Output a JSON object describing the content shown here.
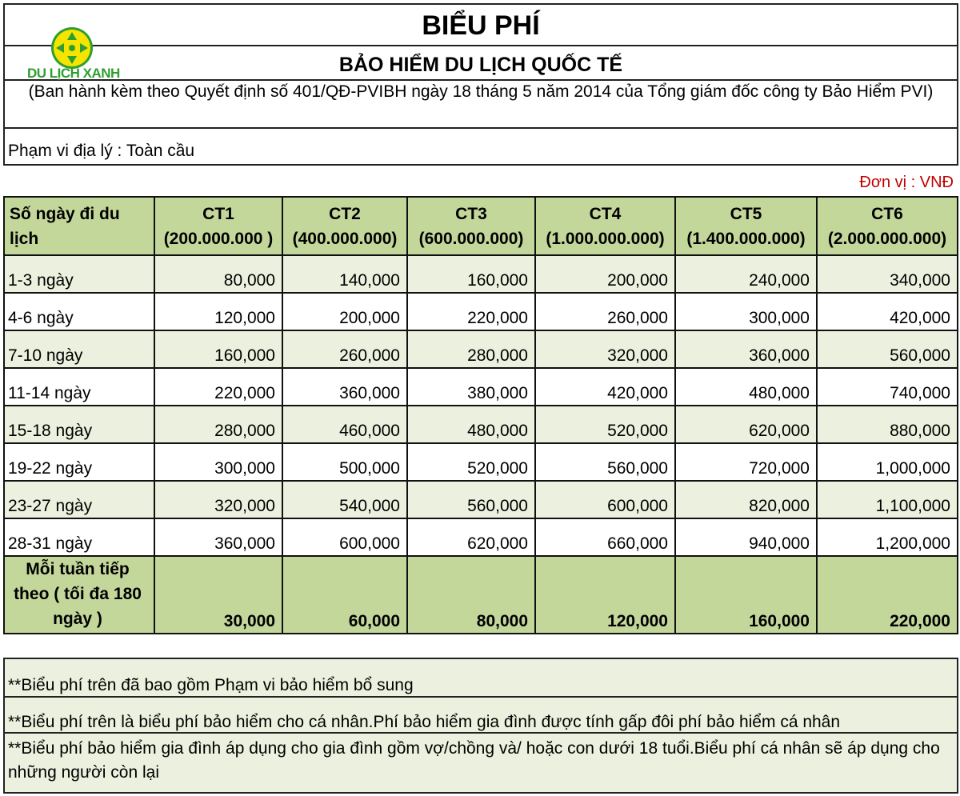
{
  "header": {
    "title": "BIỂU PHÍ",
    "subtitle": "BẢO HIỂM DU LỊCH QUỐC TẾ",
    "decision": "(Ban hành kèm theo Quyết định số 401/QĐ-PVIBH ngày 18 tháng 5 năm 2014 của Tổng giám đốc công ty Bảo Hiểm PVI)",
    "scope": "Phạm vi địa lý : Toàn cầu",
    "logo_text": "DU LỊCH XANH"
  },
  "unit": "Đơn vị :  VNĐ",
  "colors": {
    "header_green": "#c4d79b",
    "light_green": "#ebf1de",
    "unit_red": "#c00000",
    "logo_green": "#2e9e2e",
    "logo_yellow": "#f5e400"
  },
  "table": {
    "first_header": "Số ngày đi du lịch",
    "columns": [
      {
        "name": "CT1",
        "amount": "(200.000.000 )"
      },
      {
        "name": "CT2",
        "amount": "(400.000.000)"
      },
      {
        "name": "CT3",
        "amount": "(600.000.000)"
      },
      {
        "name": "CT4",
        "amount": "(1.000.000.000)"
      },
      {
        "name": "CT5",
        "amount": "(1.400.000.000)"
      },
      {
        "name": "CT6",
        "amount": "(2.000.000.000)"
      }
    ],
    "rows": [
      {
        "label": "1-3 ngày",
        "values": [
          "80,000",
          "140,000",
          "160,000",
          "200,000",
          "240,000",
          "340,000"
        ]
      },
      {
        "label": "4-6 ngày",
        "values": [
          "120,000",
          "200,000",
          "220,000",
          "260,000",
          "300,000",
          "420,000"
        ]
      },
      {
        "label": "7-10 ngày",
        "values": [
          "160,000",
          "260,000",
          "280,000",
          "320,000",
          "360,000",
          "560,000"
        ]
      },
      {
        "label": "11-14 ngày",
        "values": [
          "220,000",
          "360,000",
          "380,000",
          "420,000",
          "480,000",
          "740,000"
        ]
      },
      {
        "label": "15-18 ngày",
        "values": [
          "280,000",
          "460,000",
          "480,000",
          "520,000",
          "620,000",
          "880,000"
        ]
      },
      {
        "label": "19-22 ngày",
        "values": [
          "300,000",
          "500,000",
          "520,000",
          "560,000",
          "720,000",
          "1,000,000"
        ]
      },
      {
        "label": "23-27 ngày",
        "values": [
          "320,000",
          "540,000",
          "560,000",
          "600,000",
          "820,000",
          "1,100,000"
        ]
      },
      {
        "label": "28-31 ngày",
        "values": [
          "360,000",
          "600,000",
          "620,000",
          "660,000",
          "940,000",
          "1,200,000"
        ]
      }
    ],
    "extra_row": {
      "label": "Mỗi tuần tiếp theo ( tối đa 180 ngày )",
      "values": [
        "30,000",
        "60,000",
        "80,000",
        "120,000",
        "160,000",
        "220,000"
      ]
    }
  },
  "notes": [
    "**Biểu phí trên đã bao gồm Phạm vi bảo hiểm bổ sung",
    "**Biểu phí trên là biểu phí bảo hiểm cho cá nhân.Phí bảo hiểm gia đình được tính gấp đôi phí bảo hiểm cá nhân",
    "**Biểu phí bảo hiểm gia đình áp dụng cho gia đình gồm vợ/chồng và/ hoặc con dưới 18 tuổi.Biểu phí cá nhân sẽ áp dụng cho những người còn lại"
  ]
}
